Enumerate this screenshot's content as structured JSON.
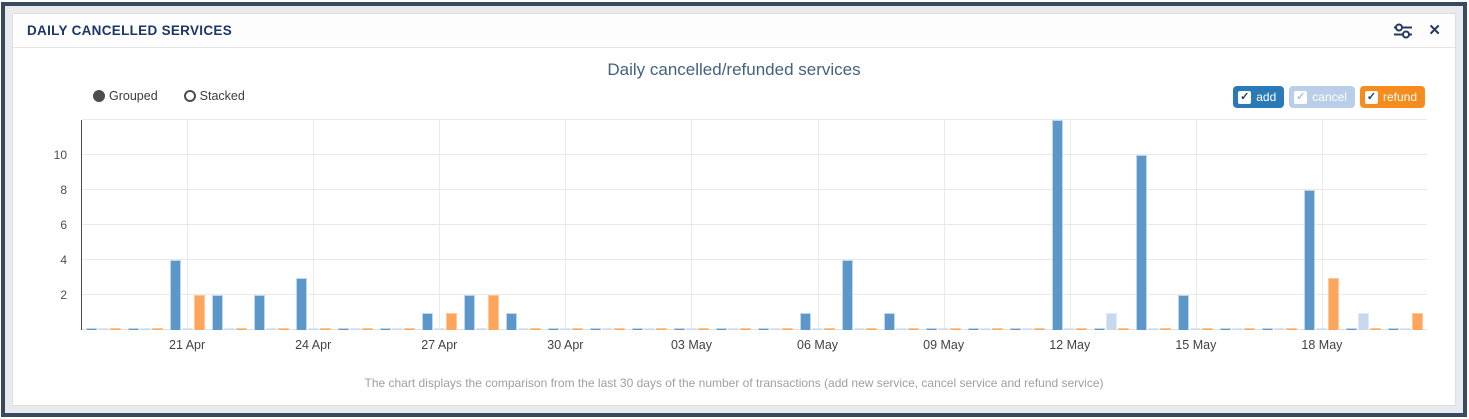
{
  "panel": {
    "title": "DAILY CANCELLED SERVICES",
    "settings_icon": "sliders-icon",
    "close_icon": "close-icon",
    "close_glyph": "✕"
  },
  "controls": {
    "options": [
      {
        "label": "Grouped",
        "selected": true
      },
      {
        "label": "Stacked",
        "selected": false
      }
    ]
  },
  "legend": [
    {
      "label": "add",
      "color": "#2a7ab7",
      "check_color": "#1f3a5f",
      "checked": true
    },
    {
      "label": "cancel",
      "color": "#b9cfe9",
      "check_color": "#a7c0e0",
      "checked": true
    },
    {
      "label": "refund",
      "color": "#f78c1e",
      "check_color": "#1f3a5f",
      "checked": true
    }
  ],
  "caption": "The chart displays the comparison from the last 30 days of the number of transactions (add new service, cancel service and refund service)",
  "chart_data": {
    "type": "bar",
    "mode": "grouped",
    "title": "Daily cancelled/refunded services",
    "categories": [
      "19 Apr",
      "20 Apr",
      "21 Apr",
      "22 Apr",
      "23 Apr",
      "24 Apr",
      "25 Apr",
      "26 Apr",
      "27 Apr",
      "28 Apr",
      "29 Apr",
      "30 Apr",
      "01 May",
      "02 May",
      "03 May",
      "04 May",
      "05 May",
      "06 May",
      "07 May",
      "08 May",
      "09 May",
      "10 May",
      "11 May",
      "12 May",
      "13 May",
      "14 May",
      "15 May",
      "16 May",
      "17 May",
      "18 May",
      "19 May",
      "20 May"
    ],
    "x_tick_labels": [
      "21 Apr",
      "24 Apr",
      "27 Apr",
      "30 Apr",
      "03 May",
      "06 May",
      "09 May",
      "12 May",
      "15 May",
      "18 May"
    ],
    "series": [
      {
        "name": "add",
        "color": "#5b97c8",
        "border": "#c0d7eb",
        "values": [
          0,
          0,
          4,
          2,
          2,
          3,
          0,
          0,
          1,
          2,
          1,
          0,
          0,
          0,
          0,
          0,
          0,
          1,
          4,
          1,
          0,
          0,
          0,
          12,
          0,
          10,
          2,
          0,
          0,
          8,
          0,
          0
        ]
      },
      {
        "name": "cancel",
        "color": "#c8d8ee",
        "border": "#dfe9f6",
        "values": [
          0,
          0,
          0,
          0,
          0,
          0,
          0,
          0,
          0,
          0,
          0,
          0,
          0,
          0,
          0,
          0,
          0,
          0,
          0,
          0,
          0,
          0,
          0,
          0,
          1,
          0,
          0,
          0,
          0,
          0,
          1,
          0
        ]
      },
      {
        "name": "refund",
        "color": "#fda55c",
        "border": "#fec896",
        "values": [
          0,
          0,
          2,
          0,
          0,
          0,
          0,
          0,
          1,
          2,
          0,
          0,
          0,
          0,
          0,
          0,
          0,
          0,
          0,
          0,
          0,
          0,
          0,
          0,
          0,
          0,
          0,
          0,
          0,
          3,
          0,
          1
        ]
      }
    ],
    "y_ticks": [
      2,
      4,
      6,
      8,
      10
    ],
    "ylim": [
      0,
      12
    ],
    "grid": true,
    "legend_position": "top-right",
    "xlabel": "",
    "ylabel": ""
  }
}
